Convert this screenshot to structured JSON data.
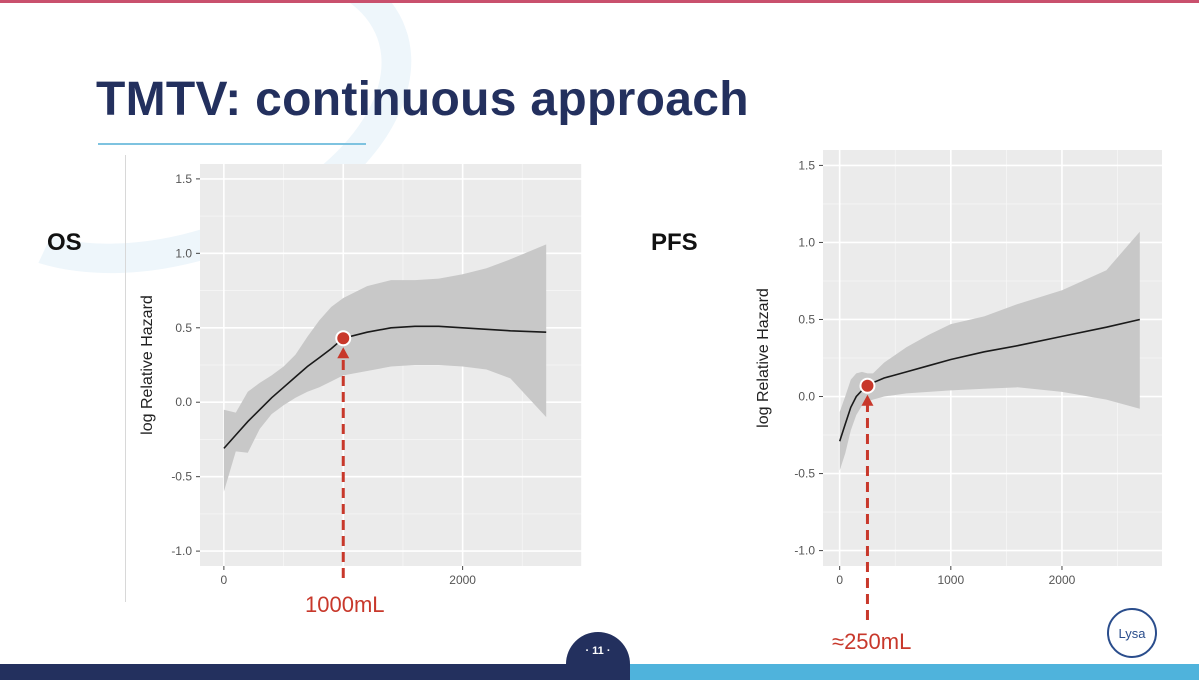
{
  "slide": {
    "title": "TMTV: continuous approach",
    "page_number": "· 11 ·",
    "logo_text": "Lysa"
  },
  "colors": {
    "title": "#23305e",
    "accent": "#c8382b",
    "panel_bg": "#ebebeb",
    "ribbon": "#c8c8c8"
  },
  "chart_data": [
    {
      "type": "line",
      "panel_label": "OS",
      "ylabel": "log Relative Hazard",
      "xlabel": "",
      "xlim": [
        -200,
        3000
      ],
      "ylim": [
        -1.1,
        1.6
      ],
      "x_ticks": [
        0,
        2000
      ],
      "x_tick_labels": [
        "0",
        "2000"
      ],
      "y_ticks": [
        -1.0,
        -0.5,
        0.0,
        0.5,
        1.0,
        1.5
      ],
      "y_tick_labels": [
        "-1.0",
        "-0.5",
        "0.0",
        "0.5",
        "1.0",
        "1.5"
      ],
      "grid": true,
      "series": [
        {
          "name": "estimate",
          "x": [
            0,
            100,
            200,
            300,
            400,
            500,
            600,
            700,
            800,
            900,
            1000,
            1200,
            1400,
            1600,
            1800,
            2000,
            2200,
            2400,
            2700
          ],
          "y": [
            -0.31,
            -0.22,
            -0.13,
            -0.05,
            0.03,
            0.1,
            0.17,
            0.24,
            0.3,
            0.36,
            0.43,
            0.47,
            0.5,
            0.51,
            0.51,
            0.5,
            0.49,
            0.48,
            0.47
          ]
        }
      ],
      "ribbon": {
        "x": [
          0,
          100,
          200,
          300,
          400,
          500,
          600,
          700,
          800,
          900,
          1000,
          1200,
          1400,
          1600,
          1800,
          2000,
          2200,
          2400,
          2700
        ],
        "lower": [
          -0.6,
          -0.33,
          -0.34,
          -0.18,
          -0.08,
          -0.02,
          0.03,
          0.07,
          0.1,
          0.14,
          0.18,
          0.21,
          0.24,
          0.25,
          0.25,
          0.24,
          0.22,
          0.16,
          -0.1
        ],
        "upper": [
          -0.05,
          -0.07,
          0.07,
          0.13,
          0.18,
          0.24,
          0.32,
          0.44,
          0.55,
          0.64,
          0.7,
          0.78,
          0.82,
          0.82,
          0.83,
          0.86,
          0.9,
          0.96,
          1.06
        ]
      },
      "highlight": {
        "x": 1000,
        "y": 0.43,
        "label": "1000mL"
      }
    },
    {
      "type": "line",
      "panel_label": "PFS",
      "ylabel": "log Relative Hazard",
      "xlabel": "",
      "xlim": [
        -150,
        2900
      ],
      "ylim": [
        -1.1,
        1.6
      ],
      "x_ticks": [
        0,
        1000,
        2000
      ],
      "x_tick_labels": [
        "0",
        "1000",
        "2000"
      ],
      "y_ticks": [
        -1.0,
        -0.5,
        0.0,
        0.5,
        1.0,
        1.5
      ],
      "y_tick_labels": [
        "-1.0",
        "-0.5",
        "0.0",
        "0.5",
        "1.0",
        "1.5"
      ],
      "grid": true,
      "series": [
        {
          "name": "estimate",
          "x": [
            0,
            50,
            100,
            150,
            200,
            250,
            300,
            400,
            600,
            800,
            1000,
            1300,
            1600,
            2000,
            2400,
            2700
          ],
          "y": [
            -0.29,
            -0.18,
            -0.07,
            0.0,
            0.04,
            0.07,
            0.09,
            0.12,
            0.16,
            0.2,
            0.24,
            0.29,
            0.33,
            0.39,
            0.45,
            0.5
          ]
        }
      ],
      "ribbon": {
        "x": [
          0,
          50,
          100,
          150,
          200,
          250,
          300,
          400,
          600,
          800,
          1000,
          1300,
          1600,
          2000,
          2400,
          2700
        ],
        "lower": [
          -0.48,
          -0.37,
          -0.22,
          -0.12,
          -0.06,
          -0.03,
          -0.02,
          0.0,
          0.02,
          0.03,
          0.04,
          0.05,
          0.06,
          0.03,
          -0.02,
          -0.08
        ],
        "upper": [
          -0.1,
          0.0,
          0.11,
          0.15,
          0.16,
          0.15,
          0.15,
          0.22,
          0.32,
          0.4,
          0.47,
          0.52,
          0.6,
          0.69,
          0.82,
          1.07
        ]
      },
      "highlight": {
        "x": 250,
        "y": 0.07,
        "label": "≈250mL"
      }
    }
  ]
}
